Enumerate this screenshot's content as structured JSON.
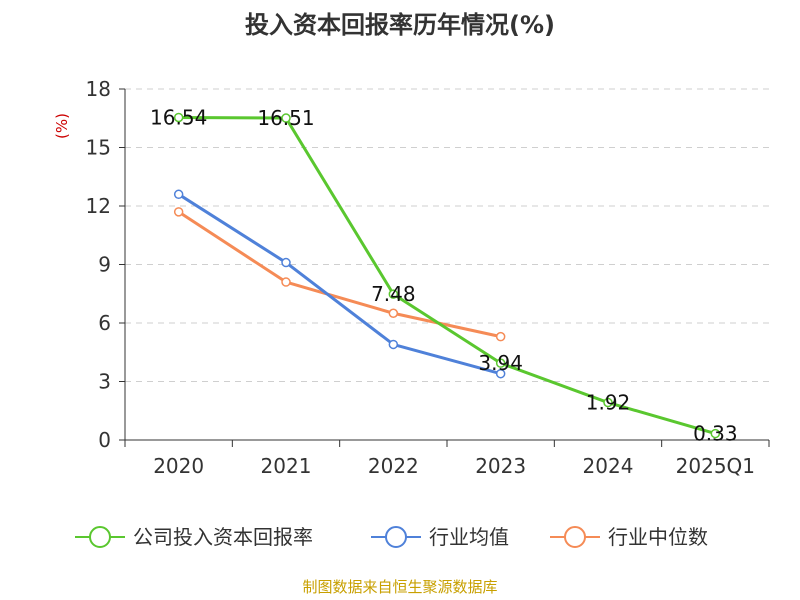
{
  "chart_data": {
    "type": "line",
    "title": "投入资本回报率历年情况(%)",
    "ylabel": "(%)",
    "xlabel": "",
    "ylim": [
      0,
      18
    ],
    "yticks": [
      0,
      3,
      6,
      9,
      12,
      15,
      18
    ],
    "categories": [
      "2020",
      "2021",
      "2022",
      "2023",
      "2024",
      "2025Q1"
    ],
    "grid": true,
    "legend_position": "bottom",
    "series": [
      {
        "name": "公司投入资本回报率",
        "color": "#5ac72f",
        "values": [
          16.54,
          16.51,
          7.48,
          3.94,
          1.92,
          0.33
        ],
        "labels": [
          "16.54",
          "16.51",
          "7.48",
          "3.94",
          "1.92",
          "0.33"
        ]
      },
      {
        "name": "行业均值",
        "color": "#4f81d9",
        "values": [
          12.6,
          9.1,
          4.9,
          3.4,
          null,
          null
        ]
      },
      {
        "name": "行业中位数",
        "color": "#f58b56",
        "values": [
          11.7,
          8.1,
          6.5,
          5.3,
          null,
          null
        ]
      }
    ],
    "source": "制图数据来自恒生聚源数据库"
  }
}
